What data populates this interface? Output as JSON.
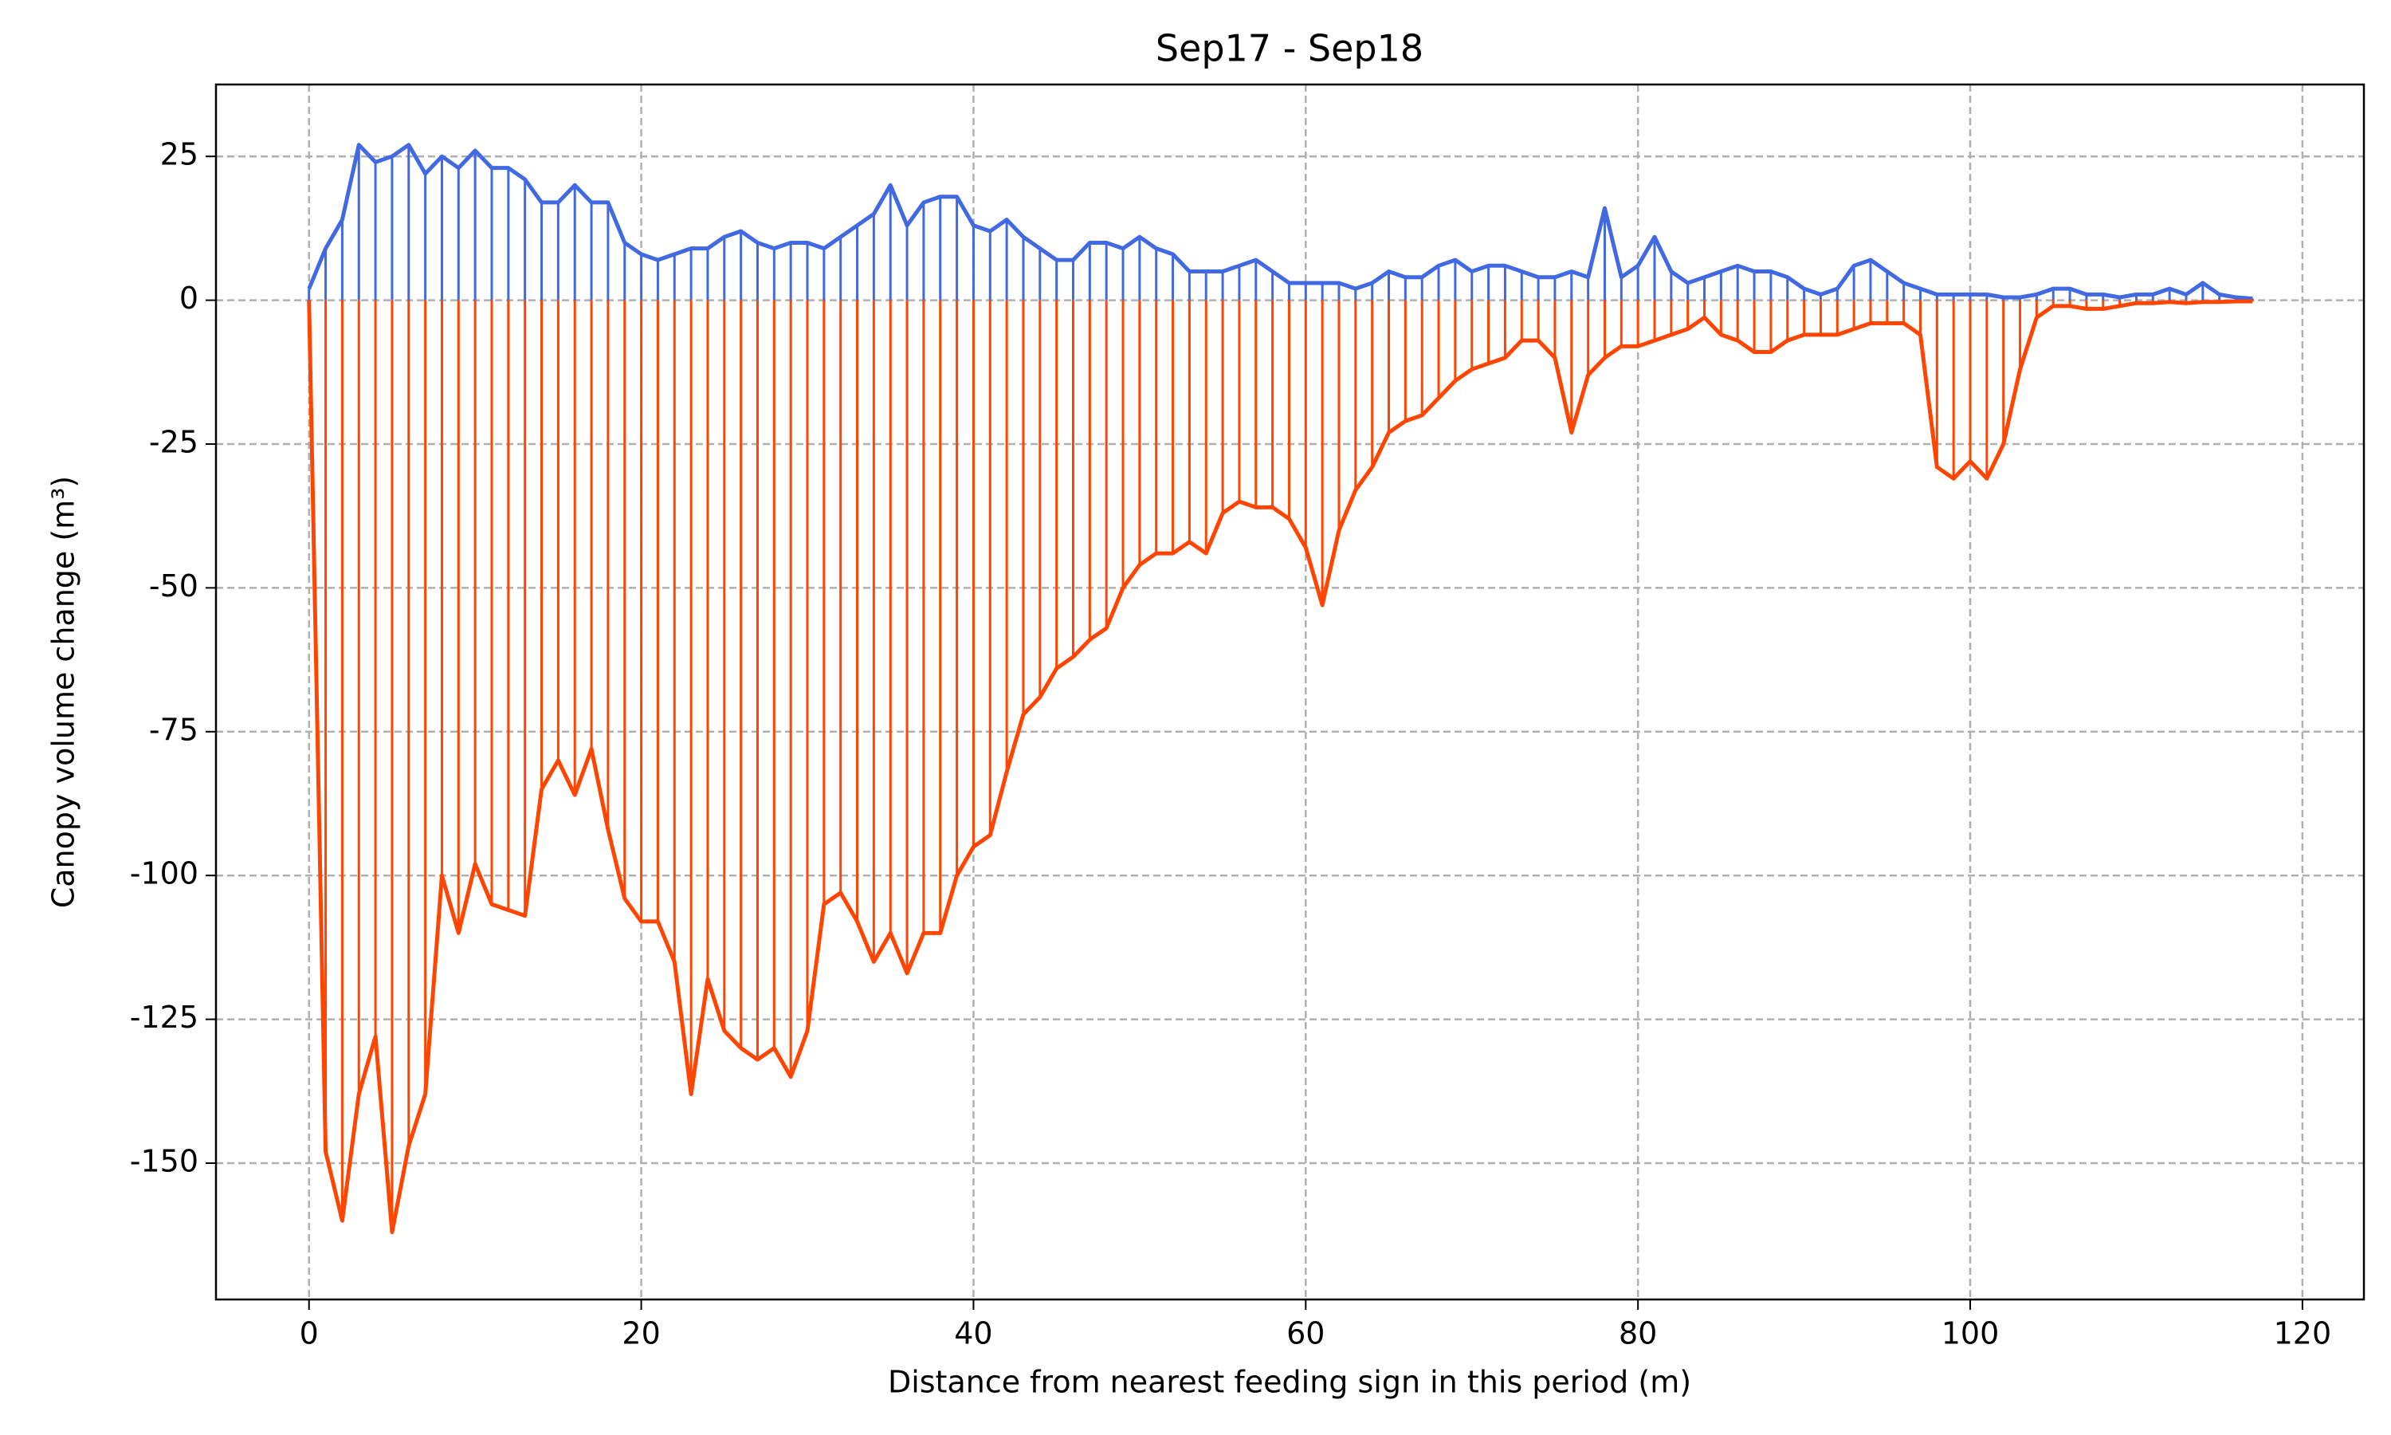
{
  "chart_data": {
    "type": "stem-line",
    "title": "Sep17 - Sep18",
    "x_label": "Distance from nearest feeding sign in this period (m)",
    "y_label": "Canopy volume change (m³)",
    "x": [
      0,
      1,
      2,
      3,
      4,
      5,
      6,
      7,
      8,
      9,
      10,
      11,
      12,
      13,
      14,
      15,
      16,
      17,
      18,
      19,
      20,
      21,
      22,
      23,
      24,
      25,
      26,
      27,
      28,
      29,
      30,
      31,
      32,
      33,
      34,
      35,
      36,
      37,
      38,
      39,
      40,
      41,
      42,
      43,
      44,
      45,
      46,
      47,
      48,
      49,
      50,
      51,
      52,
      53,
      54,
      55,
      56,
      57,
      58,
      59,
      60,
      61,
      62,
      63,
      64,
      65,
      66,
      67,
      68,
      69,
      70,
      71,
      72,
      73,
      74,
      75,
      76,
      77,
      78,
      79,
      80,
      81,
      82,
      83,
      84,
      85,
      86,
      87,
      88,
      89,
      90,
      91,
      92,
      93,
      94,
      95,
      96,
      97,
      98,
      99,
      100,
      101,
      102,
      103,
      104,
      105,
      106,
      107,
      108,
      109,
      110,
      111,
      112,
      113,
      114,
      115,
      116,
      117
    ],
    "series": [
      {
        "color": "#4169e1",
        "values": [
          2,
          9,
          14,
          27,
          24,
          25,
          27,
          22,
          25,
          23,
          26,
          23,
          23,
          21,
          17,
          17,
          20,
          17,
          17,
          10,
          8,
          7,
          8,
          9,
          9,
          11,
          12,
          10,
          9,
          10,
          10,
          9,
          11,
          13,
          15,
          20,
          13,
          17,
          18,
          18,
          13,
          12,
          14,
          11,
          9,
          7,
          7,
          10,
          10,
          9,
          11,
          9,
          8,
          5,
          5,
          5,
          6,
          7,
          5,
          3,
          3,
          3,
          3,
          2,
          3,
          5,
          4,
          4,
          6,
          7,
          5,
          6,
          6,
          5,
          4,
          4,
          5,
          4,
          16,
          4,
          6,
          11,
          5,
          3,
          4,
          5,
          6,
          5,
          5,
          4,
          2,
          1,
          2,
          6,
          7,
          5,
          3,
          2,
          1,
          1,
          1,
          1,
          0.5,
          0.5,
          1,
          2,
          2,
          1,
          1,
          0.5,
          1,
          1,
          2,
          1,
          3,
          1,
          0.5,
          0.3
        ]
      },
      {
        "color": "#ff4500",
        "values": [
          0,
          -148,
          -160,
          -138,
          -128,
          -162,
          -147,
          -138,
          -100,
          -110,
          -98,
          -105,
          -106,
          -107,
          -85,
          -80,
          -86,
          -78,
          -92,
          -104,
          -108,
          -108,
          -115,
          -138,
          -118,
          -127,
          -130,
          -132,
          -130,
          -135,
          -127,
          -105,
          -103,
          -108,
          -115,
          -110,
          -117,
          -110,
          -110,
          -100,
          -95,
          -93,
          -82,
          -72,
          -69,
          -64,
          -62,
          -59,
          -57,
          -50,
          -46,
          -44,
          -44,
          -42,
          -44,
          -37,
          -35,
          -36,
          -36,
          -38,
          -43,
          -53,
          -40,
          -33,
          -29,
          -23,
          -21,
          -20,
          -17,
          -14,
          -12,
          -11,
          -10,
          -7,
          -7,
          -10,
          -23,
          -13,
          -10,
          -8,
          -8,
          -7,
          -6,
          -5,
          -3,
          -6,
          -7,
          -9,
          -9,
          -7,
          -6,
          -6,
          -6,
          -5,
          -4,
          -4,
          -4,
          -6,
          -29,
          -31,
          -28,
          -31,
          -25,
          -12,
          -3,
          -1,
          -1,
          -1.5,
          -1.5,
          -1,
          -0.5,
          -0.5,
          -0.3,
          -0.5,
          -0.3,
          -0.3,
          -0.2,
          -0.2
        ]
      }
    ],
    "xlim": [
      -5.6,
      123.7
    ],
    "ylim": [
      -173.7,
      37.5
    ],
    "xticks": [
      0,
      20,
      40,
      60,
      80,
      100,
      120
    ],
    "yticks": [
      -150,
      -125,
      -100,
      -75,
      -50,
      -25,
      0,
      25
    ],
    "grid": true
  }
}
